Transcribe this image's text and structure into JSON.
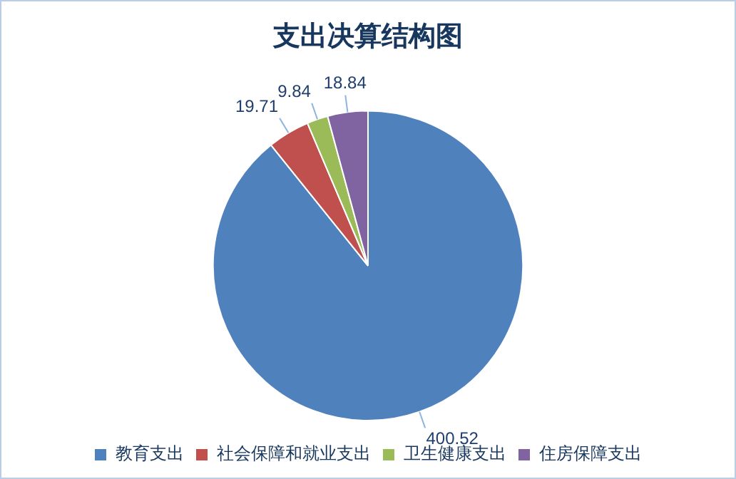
{
  "chart_data": {
    "type": "pie",
    "title": "支出决算结构图",
    "categories": [
      "教育支出",
      "社会保障和就业支出",
      "卫生健康支出",
      "住房保障支出"
    ],
    "values": [
      400.52,
      19.71,
      9.84,
      18.84
    ],
    "colors": [
      "#4f81bd",
      "#c0504d",
      "#9bbb59",
      "#8064a2"
    ],
    "data_labels": true,
    "legend": "bottom"
  }
}
